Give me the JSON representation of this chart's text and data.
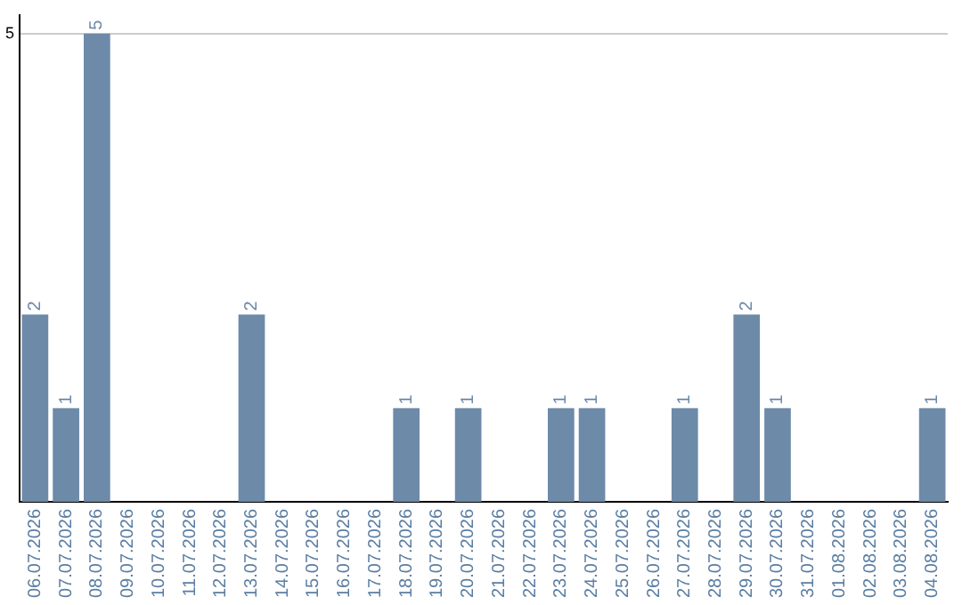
{
  "chart_data": {
    "type": "bar",
    "categories": [
      "06.07.2026",
      "07.07.2026",
      "08.07.2026",
      "09.07.2026",
      "10.07.2026",
      "11.07.2026",
      "12.07.2026",
      "13.07.2026",
      "14.07.2026",
      "15.07.2026",
      "16.07.2026",
      "17.07.2026",
      "18.07.2026",
      "19.07.2026",
      "20.07.2026",
      "21.07.2026",
      "22.07.2026",
      "23.07.2026",
      "24.07.2026",
      "25.07.2026",
      "26.07.2026",
      "27.07.2026",
      "28.07.2026",
      "29.07.2026",
      "30.07.2026",
      "31.07.2026",
      "01.08.2026",
      "02.08.2026",
      "03.08.2026",
      "04.08.2026"
    ],
    "values": [
      2,
      1,
      5,
      0,
      0,
      0,
      0,
      2,
      0,
      0,
      0,
      0,
      1,
      0,
      1,
      0,
      0,
      1,
      1,
      0,
      0,
      1,
      0,
      2,
      1,
      0,
      0,
      0,
      0,
      1
    ],
    "value_labels": [
      "2",
      "1",
      "5",
      null,
      null,
      null,
      null,
      "2",
      null,
      null,
      null,
      null,
      "1",
      null,
      "1",
      null,
      null,
      "1",
      "1",
      null,
      null,
      "1",
      null,
      "2",
      "1",
      null,
      null,
      null,
      null,
      "1"
    ],
    "color": "#6d8aa9",
    "ylim": [
      0,
      5.2
    ],
    "yticks": [
      5
    ],
    "grid": "y",
    "legend": false
  }
}
